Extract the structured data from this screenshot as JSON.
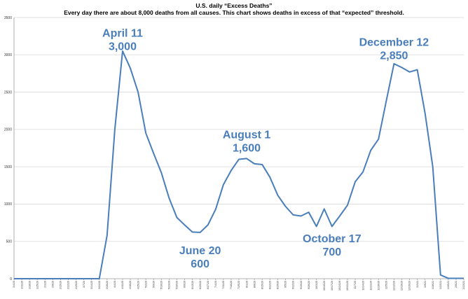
{
  "chart_data": {
    "type": "line",
    "title": "U.S. daily “Excess Deaths”",
    "subtitle": "Every day there are about 8,000 deaths from all causes. This chart shows deaths in excess of that “expected” threshold.",
    "ylim": [
      0,
      3500
    ],
    "yticks": [
      "0",
      "500",
      "1000",
      "1500",
      "2000",
      "2500",
      "3000",
      "3500"
    ],
    "grid": true,
    "legend": "none",
    "x": [
      "1/4/20",
      "1/11/20",
      "1/18/20",
      "1/25/20",
      "2/1/20",
      "2/8/20",
      "2/15/20",
      "2/22/20",
      "2/29/20",
      "3/7/20",
      "3/14/20",
      "3/21/20",
      "3/28/20",
      "4/4/20",
      "4/11/20",
      "4/18/20",
      "4/25/20",
      "5/2/20",
      "5/9/20",
      "5/16/20",
      "5/23/20",
      "5/30/20",
      "6/6/20",
      "6/13/20",
      "6/20/20",
      "6/27/20",
      "7/4/20",
      "7/11/20",
      "7/18/20",
      "7/25/20",
      "8/1/20",
      "8/8/20",
      "8/15/20",
      "8/22/20",
      "8/29/20",
      "9/5/20",
      "9/12/20",
      "9/19/20",
      "9/26/20",
      "10/3/20",
      "10/10/20",
      "10/17/20",
      "10/24/20",
      "10/31/20",
      "11/7/20",
      "11/14/20",
      "11/21/20",
      "11/28/20",
      "12/5/20",
      "12/12/20",
      "12/19/20",
      "12/26/20",
      "1/2/21",
      "1/9/21",
      "1/16/21",
      "1/23/21",
      "1/30/21",
      "2/6/21",
      "2/13/21"
    ],
    "series": [
      {
        "values": [
          0,
          0,
          0,
          0,
          0,
          0,
          0,
          0,
          0,
          0,
          0,
          0,
          580,
          2000,
          3050,
          2820,
          2500,
          1950,
          1680,
          1420,
          1080,
          820,
          720,
          625,
          620,
          720,
          930,
          1260,
          1450,
          1600,
          1610,
          1540,
          1530,
          1360,
          1120,
          970,
          855,
          840,
          890,
          700,
          935,
          700,
          840,
          985,
          1300,
          1430,
          1720,
          1870,
          2380,
          2880,
          2830,
          2770,
          2800,
          2220,
          1500,
          50,
          5,
          5,
          5
        ]
      }
    ],
    "annotations": [
      {
        "lines": [
          "April 11",
          "3,000"
        ],
        "x": "4/11/20",
        "y": 3240
      },
      {
        "lines": [
          "June 20",
          "600"
        ],
        "x": "6/20/20",
        "y": 330
      },
      {
        "lines": [
          "August 1",
          "1,600"
        ],
        "x": "8/1/20",
        "y": 1880
      },
      {
        "lines": [
          "October 17",
          "700"
        ],
        "x": "10/17/20",
        "y": 490
      },
      {
        "lines": [
          "December 12",
          "2,850"
        ],
        "x": "12/12/20",
        "y": 3120
      }
    ],
    "colors": {
      "series": "#4a7ebb",
      "grid": "#d9d9d9",
      "axis": "#9a9a9a"
    }
  }
}
